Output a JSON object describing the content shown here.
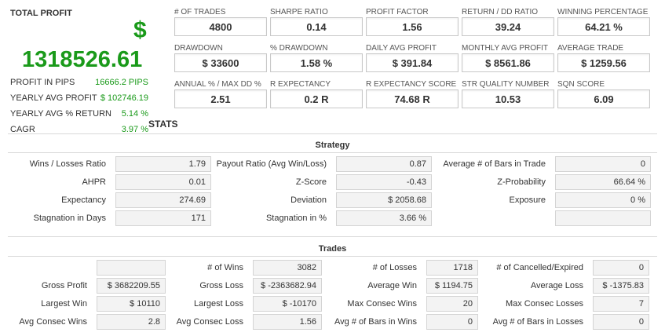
{
  "summary": {
    "title": "TOTAL PROFIT",
    "currency_symbol": "$",
    "total_profit": "1318526.61",
    "rows": [
      {
        "label": "PROFIT IN PIPS",
        "value": "16666.2 PIPS"
      },
      {
        "label": "YEARLY AVG PROFIT",
        "value": "$ 102746.19"
      },
      {
        "label": "YEARLY AVG % RETURN",
        "value": "5.14 %"
      },
      {
        "label": "CAGR",
        "value": "3.97 %"
      }
    ]
  },
  "stats_title": "STATS",
  "metrics": [
    [
      {
        "label": "# OF TRADES",
        "value": "4800"
      },
      {
        "label": "SHARPE RATIO",
        "value": "0.14"
      },
      {
        "label": "PROFIT FACTOR",
        "value": "1.56"
      },
      {
        "label": "RETURN / DD RATIO",
        "value": "39.24"
      },
      {
        "label": "WINNING PERCENTAGE",
        "value": "64.21 %"
      }
    ],
    [
      {
        "label": "DRAWDOWN",
        "value": "$ 33600"
      },
      {
        "label": "% DRAWDOWN",
        "value": "1.58 %"
      },
      {
        "label": "DAILY AVG PROFIT",
        "value": "$ 391.84"
      },
      {
        "label": "MONTHLY AVG PROFIT",
        "value": "$ 8561.86"
      },
      {
        "label": "AVERAGE TRADE",
        "value": "$ 1259.56"
      }
    ],
    [
      {
        "label": "ANNUAL % / MAX DD %",
        "value": "2.51"
      },
      {
        "label": "R EXPECTANCY",
        "value": "0.2 R"
      },
      {
        "label": "R EXPECTANCY SCORE",
        "value": "74.68 R"
      },
      {
        "label": "STR QUALITY NUMBER",
        "value": "10.53"
      },
      {
        "label": "SQN SCORE",
        "value": "6.09"
      }
    ]
  ],
  "strategy": {
    "title": "Strategy",
    "rows": [
      [
        {
          "label": "Wins / Losses Ratio",
          "value": "1.79"
        },
        {
          "label": "Payout Ratio (Avg Win/Loss)",
          "value": "0.87"
        },
        {
          "label": "Average # of Bars in Trade",
          "value": "0"
        }
      ],
      [
        {
          "label": "AHPR",
          "value": "0.01"
        },
        {
          "label": "Z-Score",
          "value": "-0.43"
        },
        {
          "label": "Z-Probability",
          "value": "66.64 %"
        }
      ],
      [
        {
          "label": "Expectancy",
          "value": "274.69"
        },
        {
          "label": "Deviation",
          "value": "$ 2058.68"
        },
        {
          "label": "Exposure",
          "value": "0 %"
        }
      ],
      [
        {
          "label": "Stagnation in Days",
          "value": "171"
        },
        {
          "label": "Stagnation in %",
          "value": "3.66 %"
        },
        {
          "label": "",
          "value": ""
        }
      ]
    ]
  },
  "trades": {
    "title": "Trades",
    "rows": [
      [
        {
          "label": "",
          "value": ""
        },
        {
          "label": "# of Wins",
          "value": "3082"
        },
        {
          "label": "# of Losses",
          "value": "1718"
        },
        {
          "label": "# of Cancelled/Expired",
          "value": "0"
        }
      ],
      [
        {
          "label": "Gross Profit",
          "value": "$ 3682209.55"
        },
        {
          "label": "Gross Loss",
          "value": "$ -2363682.94"
        },
        {
          "label": "Average Win",
          "value": "$ 1194.75"
        },
        {
          "label": "Average Loss",
          "value": "$ -1375.83"
        }
      ],
      [
        {
          "label": "Largest Win",
          "value": "$ 10110"
        },
        {
          "label": "Largest Loss",
          "value": "$ -10170"
        },
        {
          "label": "Max Consec Wins",
          "value": "20"
        },
        {
          "label": "Max Consec Losses",
          "value": "7"
        }
      ],
      [
        {
          "label": "Avg Consec Wins",
          "value": "2.8"
        },
        {
          "label": "Avg Consec Loss",
          "value": "1.56"
        },
        {
          "label": "Avg # of Bars in Wins",
          "value": "0"
        },
        {
          "label": "Avg # of Bars in Losses",
          "value": "0"
        }
      ]
    ]
  }
}
